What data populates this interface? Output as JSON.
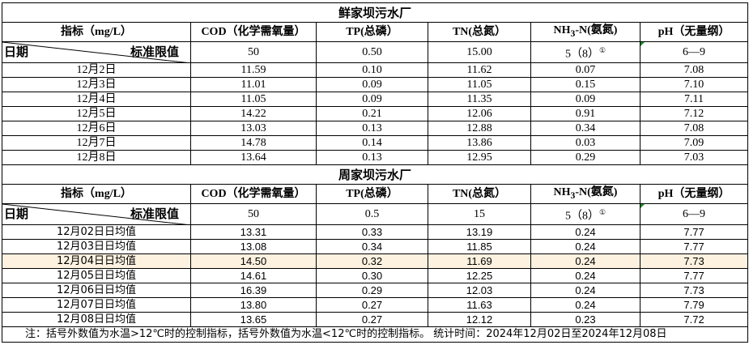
{
  "plants": [
    {
      "name": "鲜家坝污水厂",
      "headers": {
        "index": "指标（mg/L）",
        "cod": "COD（化学需氧量）",
        "tp": "TP(总磷）",
        "tn": "TN(总氮）",
        "nh3_pre": "NH",
        "nh3_sub": "3",
        "nh3_post": "-N(氨氮)",
        "ph": "pH（无量纲）"
      },
      "diag_left": "日期",
      "diag_right": "标准限值",
      "limits": {
        "cod": "50",
        "tp": "0.50",
        "tn": "15.00",
        "nh3": "5（8）",
        "nh3_note": "①",
        "ph": "6—9"
      },
      "rows": [
        {
          "date": "12月2日",
          "cod": "11.59",
          "tp": "0.10",
          "tn": "11.62",
          "nh3": "0.07",
          "ph": "7.08"
        },
        {
          "date": "12月3日",
          "cod": "11.01",
          "tp": "0.09",
          "tn": "11.05",
          "nh3": "0.15",
          "ph": "7.10"
        },
        {
          "date": "12月4日",
          "cod": "11.05",
          "tp": "0.09",
          "tn": "11.35",
          "nh3": "0.09",
          "ph": "7.11"
        },
        {
          "date": "12月5日",
          "cod": "14.22",
          "tp": "0.21",
          "tn": "12.06",
          "nh3": "0.91",
          "ph": "7.12"
        },
        {
          "date": "12月6日",
          "cod": "13.03",
          "tp": "0.13",
          "tn": "12.88",
          "nh3": "0.34",
          "ph": "7.08"
        },
        {
          "date": "12月7日",
          "cod": "14.78",
          "tp": "0.14",
          "tn": "13.86",
          "nh3": "0.03",
          "ph": "7.09"
        },
        {
          "date": "12月8日",
          "cod": "13.64",
          "tp": "0.13",
          "tn": "12.95",
          "nh3": "0.29",
          "ph": "7.03"
        }
      ]
    },
    {
      "name": "周家坝污水厂",
      "headers": {
        "index": "指标（mg/L）",
        "cod": "COD（化学需氧量）",
        "tp": "TP(总磷）",
        "tn": "TN(总氮）",
        "nh3_pre": "NH",
        "nh3_sub": "3",
        "nh3_post": "-N(氨氮)",
        "ph": "pH（无量纲）"
      },
      "diag_left": "日期",
      "diag_right": "标准限值",
      "limits": {
        "cod": "50",
        "tp": "0.5",
        "tn": "15",
        "nh3": "5（8）",
        "nh3_note": "①",
        "ph": "6—9"
      },
      "rows": [
        {
          "date": "12月02日日均值",
          "cod": "13.31",
          "tp": "0.33",
          "tn": "13.19",
          "nh3": "0.24",
          "ph": "7.77"
        },
        {
          "date": "12月03日日均值",
          "cod": "13.08",
          "tp": "0.34",
          "tn": "11.85",
          "nh3": "0.24",
          "ph": "7.77"
        },
        {
          "date": "12月04日日均值",
          "cod": "14.50",
          "tp": "0.32",
          "tn": "11.69",
          "nh3": "0.24",
          "ph": "7.73"
        },
        {
          "date": "12月05日日均值",
          "cod": "14.61",
          "tp": "0.30",
          "tn": "12.25",
          "nh3": "0.24",
          "ph": "7.77"
        },
        {
          "date": "12月06日日均值",
          "cod": "16.39",
          "tp": "0.29",
          "tn": "12.03",
          "nh3": "0.24",
          "ph": "7.73"
        },
        {
          "date": "12月07日日均值",
          "cod": "13.80",
          "tp": "0.27",
          "tn": "11.63",
          "nh3": "0.24",
          "ph": "7.79"
        },
        {
          "date": "12月08日日均值",
          "cod": "13.65",
          "tp": "0.27",
          "tn": "12.12",
          "nh3": "0.23",
          "ph": "7.72"
        }
      ]
    }
  ],
  "highlight_color": "#fdf1e0",
  "footnote": "注：括号外数值为水温>12℃时的控制指标，括号外数值为水温<12℃时的控制指标。  统计时间：2024年12月02日至2024年12月08日"
}
